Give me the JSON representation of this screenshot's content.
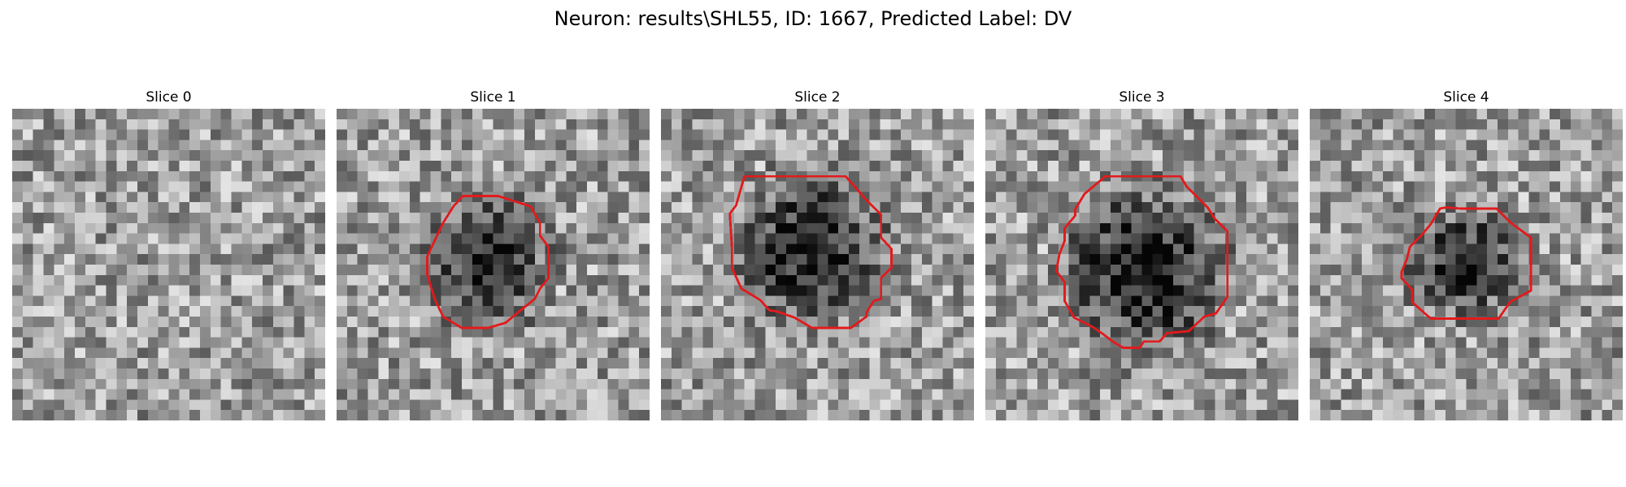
{
  "figure": {
    "title": "Neuron: results\\SHL55, ID: 1667, Predicted Label: DV"
  },
  "panels": [
    {
      "title": "Slice 0",
      "has_contour": false,
      "seed": 11,
      "blob": null
    },
    {
      "title": "Slice 1",
      "has_contour": true,
      "seed": 23,
      "blob": {
        "cx": 14.6,
        "cy": 14.9,
        "rx": 5.6,
        "ry": 6.2,
        "depth": 0.55
      }
    },
    {
      "title": "Slice 2",
      "has_contour": true,
      "seed": 37,
      "blob": {
        "cx": 14.3,
        "cy": 13.5,
        "rx": 7.2,
        "ry": 7.2,
        "depth": 0.55
      }
    },
    {
      "title": "Slice 3",
      "has_contour": true,
      "seed": 41,
      "blob": {
        "cx": 15.2,
        "cy": 15.6,
        "rx": 7.6,
        "ry": 8.0,
        "depth": 0.6
      }
    },
    {
      "title": "Slice 4",
      "has_contour": true,
      "seed": 53,
      "blob": {
        "cx": 15.1,
        "cy": 14.8,
        "rx": 5.8,
        "ry": 5.2,
        "depth": 0.5
      }
    }
  ],
  "contour_color": "#e31a1c"
}
